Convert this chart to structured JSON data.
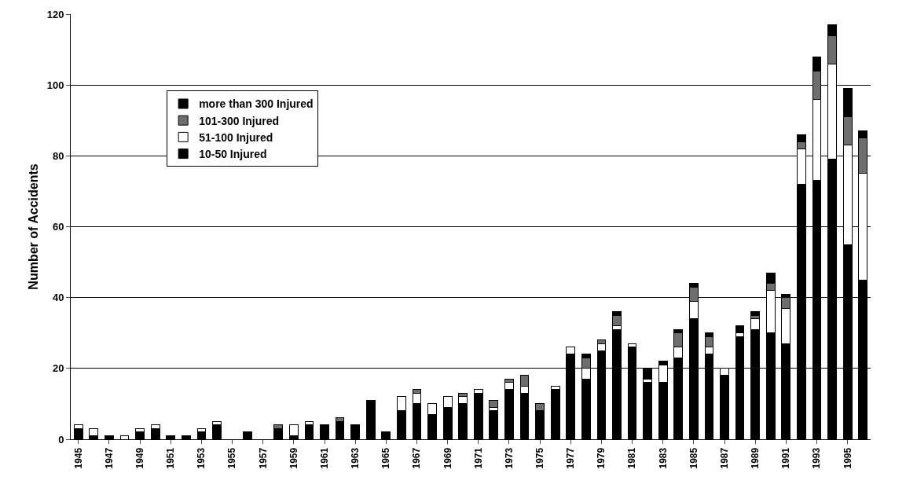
{
  "chart_data": {
    "type": "bar",
    "stacked": true,
    "ylabel": "Number of Accidents",
    "categories": [
      "1945",
      null,
      "1947",
      null,
      "1949",
      null,
      "1951",
      null,
      "1953",
      null,
      "1955",
      null,
      "1957",
      null,
      "1959",
      null,
      "1961",
      null,
      "1963",
      null,
      "1965",
      null,
      "1967",
      null,
      "1969",
      null,
      "1971",
      null,
      "1973",
      null,
      "1975",
      null,
      "1977",
      null,
      "1979",
      null,
      "1981",
      null,
      "1983",
      null,
      "1985",
      null,
      "1987",
      null,
      "1989",
      null,
      "1991",
      null,
      "1993",
      null,
      "1995",
      null
    ],
    "series": [
      {
        "name": "10-50 Injured",
        "color": "#000000",
        "values": [
          3,
          1,
          1,
          0,
          2,
          3,
          1,
          1,
          2,
          4,
          0,
          2,
          0,
          3,
          1,
          4,
          4,
          5,
          4,
          11,
          2,
          8,
          10,
          7,
          9,
          10,
          13,
          8,
          14,
          13,
          8,
          14,
          24,
          17,
          25,
          31,
          26,
          16,
          16,
          23,
          34,
          24,
          18,
          29,
          31,
          30,
          27,
          72,
          73,
          79,
          55,
          45
        ]
      },
      {
        "name": "51-100 Injured",
        "color": "#ffffff",
        "values": [
          1,
          2,
          0,
          1,
          1,
          1,
          0,
          0,
          1,
          1,
          0,
          0,
          0,
          0,
          3,
          1,
          0,
          0,
          0,
          0,
          0,
          4,
          3,
          3,
          3,
          2,
          1,
          1,
          2,
          2,
          0,
          1,
          2,
          3,
          2,
          1,
          1,
          1,
          5,
          3,
          5,
          2,
          2,
          1,
          3,
          12,
          10,
          10,
          23,
          27,
          28,
          30
        ]
      },
      {
        "name": "101-300 Injured",
        "color": "#6e6e6e",
        "values": [
          0,
          0,
          0,
          0,
          0,
          0,
          0,
          0,
          0,
          0,
          0,
          0,
          0,
          1,
          0,
          0,
          0,
          1,
          0,
          0,
          0,
          0,
          1,
          0,
          0,
          1,
          0,
          2,
          1,
          3,
          2,
          0,
          0,
          3,
          1,
          3,
          0,
          0,
          0,
          4,
          4,
          3,
          0,
          0,
          1,
          2,
          3,
          2,
          8,
          8,
          8,
          10
        ]
      },
      {
        "name": "more than 300 Injured",
        "color": "#000000",
        "values": [
          0,
          0,
          0,
          0,
          0,
          0,
          0,
          0,
          0,
          0,
          0,
          0,
          0,
          0,
          0,
          0,
          0,
          0,
          0,
          0,
          0,
          0,
          0,
          0,
          0,
          0,
          0,
          0,
          0,
          0,
          0,
          0,
          0,
          1,
          0,
          1,
          0,
          3,
          1,
          1,
          1,
          1,
          0,
          2,
          1,
          3,
          1,
          2,
          4,
          3,
          8,
          2
        ]
      }
    ],
    "ylim": [
      0,
      120
    ],
    "yticks": [
      0,
      20,
      40,
      60,
      80,
      100,
      120
    ],
    "grid": "y",
    "legend": "top left"
  }
}
